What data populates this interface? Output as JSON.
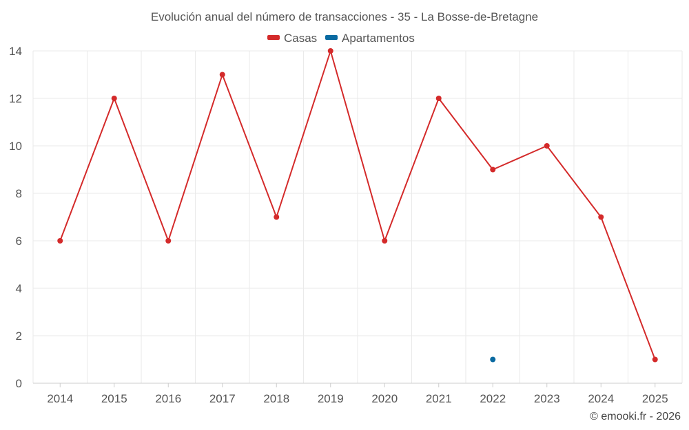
{
  "chart_data": {
    "type": "line",
    "title": "Evolución anual del número de transacciones - 35 - La Bosse-de-Bretagne",
    "categories": [
      "2014",
      "2015",
      "2016",
      "2017",
      "2018",
      "2019",
      "2020",
      "2021",
      "2022",
      "2023",
      "2024",
      "2025"
    ],
    "series": [
      {
        "name": "Casas",
        "color": "#d42a2a",
        "values": [
          6,
          12,
          6,
          13,
          7,
          14,
          6,
          12,
          9,
          10,
          7,
          1
        ]
      },
      {
        "name": "Apartamentos",
        "color": "#0a6aa1",
        "values": [
          null,
          null,
          null,
          null,
          null,
          null,
          null,
          null,
          1,
          null,
          null,
          null
        ]
      }
    ],
    "ylim": [
      0,
      14
    ],
    "yticks": [
      "0",
      "2",
      "4",
      "6",
      "8",
      "10",
      "12",
      "14"
    ],
    "xlabel": "",
    "ylabel": "",
    "grid": true,
    "legend": "top-center"
  },
  "credit": "© emooki.fr - 2026"
}
